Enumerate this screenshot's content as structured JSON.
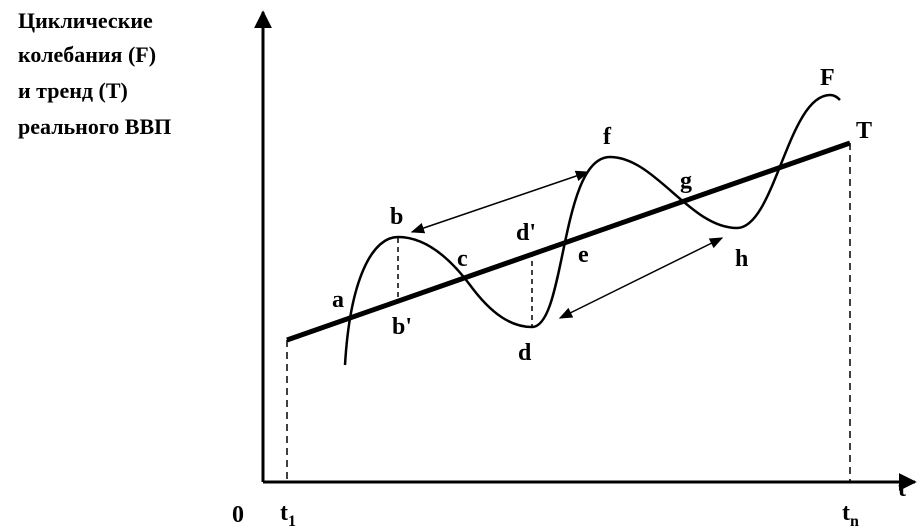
{
  "title_lines": [
    "Циклические",
    "колебания (F)",
    "и тренд (T)",
    "реального ВВП"
  ],
  "points": {
    "a": "a",
    "b": "b",
    "b_prime": "b'",
    "c": "c",
    "d": "d",
    "d_prime": "d'",
    "e": "e",
    "f": "f",
    "g": "g",
    "h": "h"
  },
  "curves": {
    "cycle": "F",
    "trend": "T"
  },
  "axes": {
    "origin": "0",
    "x_label": "t",
    "t_start": {
      "main": "t",
      "sub": "1"
    },
    "t_end": {
      "main": "t",
      "sub": "n"
    }
  }
}
